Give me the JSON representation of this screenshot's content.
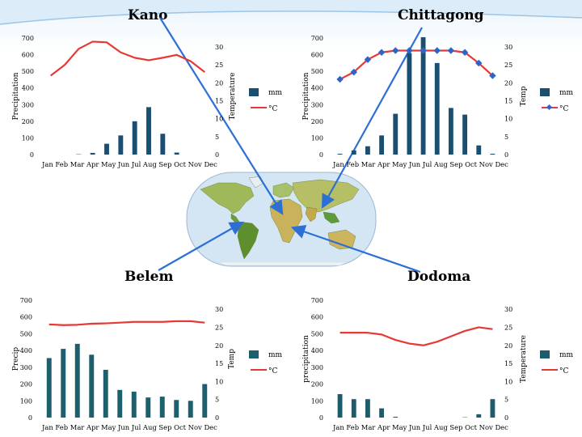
{
  "chart_data": [
    {
      "type": "bar",
      "title": "Kano",
      "categories": [
        "Jan",
        "Feb",
        "Mar",
        "Apr",
        "May",
        "Jun",
        "Jul",
        "Aug",
        "Sep",
        "Oct",
        "Nov",
        "Dec"
      ],
      "series": [
        {
          "name": "mm",
          "type": "bar",
          "axis": "left",
          "values": [
            0,
            0,
            2,
            10,
            65,
            115,
            200,
            285,
            125,
            12,
            0,
            0
          ]
        },
        {
          "name": "°C",
          "type": "line",
          "axis": "right",
          "values": [
            22,
            25,
            29.5,
            31.5,
            31.3,
            28.5,
            27,
            26.3,
            27,
            27.8,
            26,
            23
          ]
        }
      ],
      "ylabel": "Precipitation",
      "ylabel_right": "Temperature",
      "ylim": [
        0,
        700
      ],
      "ylim_right": [
        0,
        32.5
      ],
      "yticks": [
        "0",
        "100",
        "200",
        "300",
        "400",
        "500",
        "600",
        "700"
      ],
      "yticks_right": [
        "0",
        "5",
        "10",
        "15",
        "20",
        "25",
        "30"
      ],
      "xtick_text": "Jan Feb Mar Apr May Jun  Jul Aug Sep Oct Nov Dec",
      "legend": "right"
    },
    {
      "type": "bar",
      "title": "Chittagong",
      "categories": [
        "Jan",
        "Feb",
        "Mar",
        "Apr",
        "May",
        "Jun",
        "Jul",
        "Aug",
        "Sep",
        "Oct",
        "Nov",
        "Dec"
      ],
      "series": [
        {
          "name": "mm",
          "type": "bar",
          "axis": "left",
          "values": [
            5,
            25,
            50,
            115,
            245,
            610,
            705,
            550,
            280,
            240,
            55,
            5
          ]
        },
        {
          "name": "°C",
          "type": "line",
          "axis": "right",
          "values": [
            21,
            23,
            26.5,
            28.5,
            29,
            29,
            29,
            29,
            29,
            28.5,
            25.5,
            22
          ]
        }
      ],
      "ylabel": "Precipitation",
      "ylabel_right": "Temp",
      "ylim": [
        0,
        700
      ],
      "ylim_right": [
        0,
        32.5
      ],
      "yticks": [
        "0",
        "100",
        "200",
        "300",
        "400",
        "500",
        "600",
        "700"
      ],
      "yticks_right": [
        "0",
        "5",
        "10",
        "15",
        "20",
        "25",
        "30"
      ],
      "xtick_text": "Jan Feb Mar Apr May Jun  Jul Aug Sep Oct Nov Dec",
      "legend": "right"
    },
    {
      "type": "bar",
      "title": "Belem",
      "categories": [
        "Jan",
        "Feb",
        "Mar",
        "Apr",
        "May",
        "Jun",
        "Jul",
        "Aug",
        "Sep",
        "Oct",
        "Nov",
        "Dec"
      ],
      "series": [
        {
          "name": "mm",
          "type": "bar",
          "axis": "left",
          "values": [
            355,
            410,
            440,
            375,
            285,
            165,
            155,
            120,
            125,
            105,
            100,
            200
          ]
        },
        {
          "name": "°C",
          "type": "line",
          "axis": "right",
          "values": [
            25.8,
            25.6,
            25.7,
            26,
            26.1,
            26.3,
            26.5,
            26.5,
            26.5,
            26.7,
            26.7,
            26.3
          ]
        }
      ],
      "ylabel": "Precip",
      "ylabel_right": "Temp",
      "ylim": [
        0,
        700
      ],
      "ylim_right": [
        0,
        32.5
      ],
      "yticks": [
        "0",
        "100",
        "200",
        "300",
        "400",
        "500",
        "600",
        "700"
      ],
      "yticks_right": [
        "0",
        "5",
        "10",
        "15",
        "20",
        "25",
        "30"
      ],
      "xtick_text": "Jan Feb Mar Apr May Jun  Jul Aug Sep Oct Nov Dec",
      "legend": "right"
    },
    {
      "type": "bar",
      "title": "Dodoma",
      "categories": [
        "Jan",
        "Feb",
        "Mar",
        "Apr",
        "May",
        "Jun",
        "Jul",
        "Aug",
        "Sep",
        "Oct",
        "Nov",
        "Dec"
      ],
      "series": [
        {
          "name": "mm",
          "type": "bar",
          "axis": "left",
          "values": [
            140,
            110,
            110,
            55,
            5,
            0,
            0,
            0,
            0,
            2,
            20,
            110
          ]
        },
        {
          "name": "°C",
          "type": "line",
          "axis": "right",
          "values": [
            23.5,
            23.5,
            23.5,
            23,
            21.5,
            20.5,
            20,
            21,
            22.5,
            24,
            25,
            24.5
          ]
        }
      ],
      "ylabel": "precipitation",
      "ylabel_right": "Temperature",
      "ylim": [
        0,
        700
      ],
      "ylim_right": [
        0,
        32.5
      ],
      "yticks": [
        "0",
        "100",
        "200",
        "300",
        "400",
        "500",
        "600",
        "700"
      ],
      "yticks_right": [
        "0",
        "5",
        "10",
        "15",
        "20",
        "25",
        "30"
      ],
      "xtick_text": "Jan Feb Mar Apr May Jun  Jul Aug Sep Oct Nov Dec",
      "legend": "right"
    }
  ],
  "colors": {
    "bar": "#1b4f72",
    "bar_belem": "#1e5f6e",
    "bar_dodoma": "#1e5c6c",
    "line": "#e53935",
    "marker": "#2e64c8",
    "ocean": "#d4e5f4",
    "arrow": "#2e6fd6"
  }
}
